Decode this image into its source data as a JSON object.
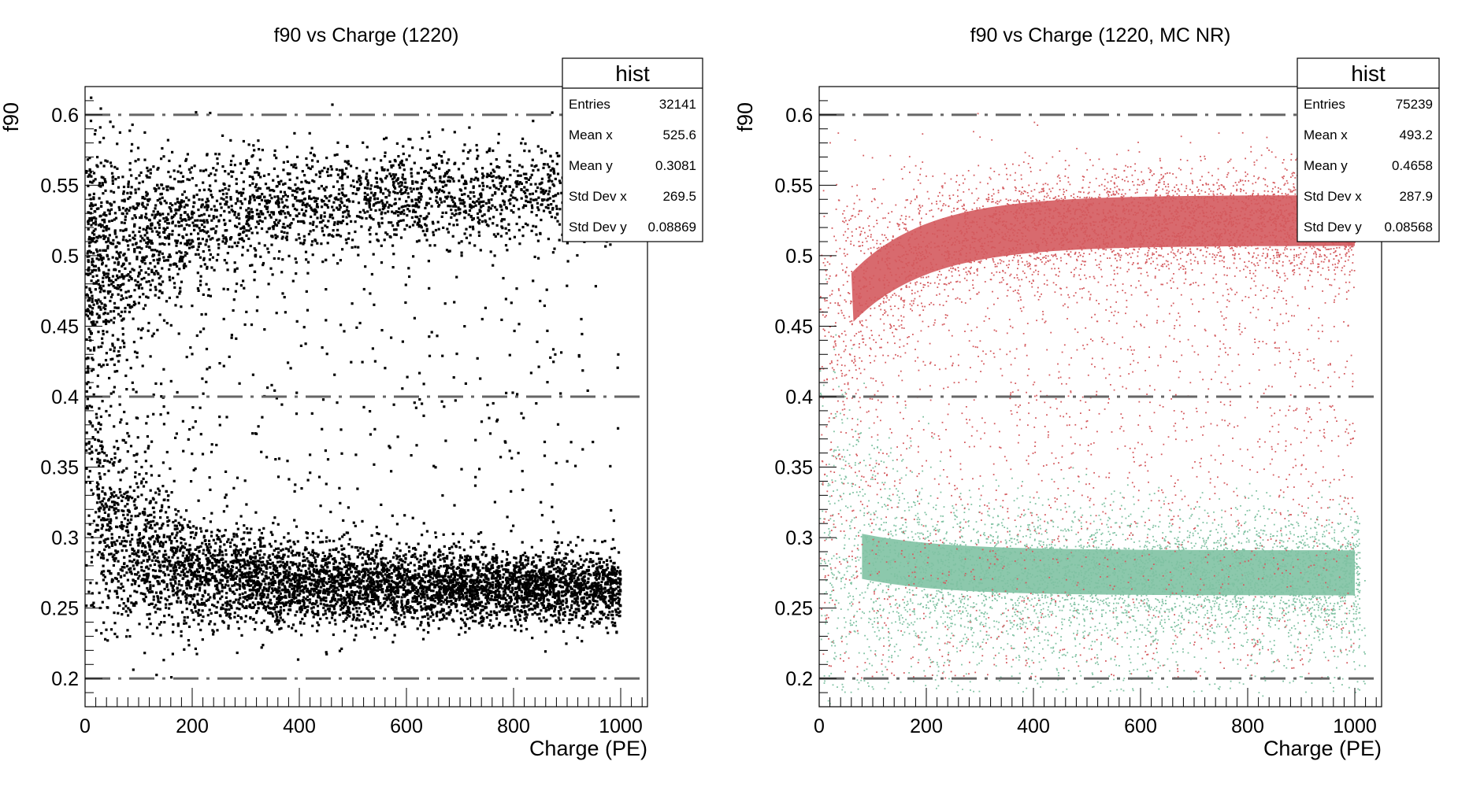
{
  "chart_data": [
    {
      "type": "scatter",
      "title": "f90 vs Charge (1220)",
      "xlabel": "Charge (PE)",
      "ylabel": "f90",
      "xlim": [
        0,
        1050
      ],
      "ylim": [
        0.18,
        0.62
      ],
      "x_ticks": [
        "0",
        "200",
        "400",
        "600",
        "800",
        "1000"
      ],
      "y_ticks": [
        "0.2",
        "0.25",
        "0.3",
        "0.35",
        "0.4",
        "0.45",
        "0.5",
        "0.55",
        "0.6"
      ],
      "reference_lines_y": [
        0.2,
        0.4,
        0.6
      ],
      "grid": false,
      "series": [
        {
          "color": "#000000",
          "point_count_drawn": 9000,
          "bands": [
            {
              "description": "ER band",
              "x_range": [
                0,
                1000
              ],
              "y_center": 0.265,
              "y_spread": 0.015
            },
            {
              "description": "NR band",
              "x_range": [
                0,
                1000
              ],
              "y_center": 0.54,
              "y_spread": 0.02
            }
          ]
        }
      ],
      "stats_box": {
        "title": "hist",
        "rows": [
          {
            "label": "Entries",
            "value": "32141"
          },
          {
            "label": "Mean x",
            "value": "525.6"
          },
          {
            "label": "Mean y",
            "value": "0.3081"
          },
          {
            "label": "Std Dev x",
            "value": "269.5"
          },
          {
            "label": "Std Dev y",
            "value": "0.08869"
          }
        ]
      }
    },
    {
      "type": "scatter",
      "title": "f90 vs Charge (1220, MC NR)",
      "xlabel": "Charge (PE)",
      "ylabel": "f90",
      "xlim": [
        0,
        1050
      ],
      "ylim": [
        0.18,
        0.62
      ],
      "x_ticks": [
        "0",
        "200",
        "400",
        "600",
        "800",
        "1000"
      ],
      "y_ticks": [
        "0.2",
        "0.25",
        "0.3",
        "0.35",
        "0.4",
        "0.45",
        "0.5",
        "0.55",
        "0.6"
      ],
      "reference_lines_y": [
        0.2,
        0.4,
        0.6
      ],
      "grid": false,
      "series": [
        {
          "color": "#d45a5e",
          "bands": [
            {
              "description": "NR band",
              "x_range": [
                0,
                1000
              ],
              "y_center": 0.52,
              "y_spread": 0.015
            }
          ]
        },
        {
          "color": "#80c2a3",
          "bands": [
            {
              "description": "ER band",
              "x_range": [
                0,
                1000
              ],
              "y_center": 0.275,
              "y_spread": 0.015
            }
          ]
        }
      ],
      "stats_box": {
        "title": "hist",
        "rows": [
          {
            "label": "Entries",
            "value": "75239"
          },
          {
            "label": "Mean x",
            "value": "493.2"
          },
          {
            "label": "Mean y",
            "value": "0.4658"
          },
          {
            "label": "Std Dev x",
            "value": "287.9"
          },
          {
            "label": "Std Dev y",
            "value": "0.08568"
          }
        ]
      }
    }
  ]
}
